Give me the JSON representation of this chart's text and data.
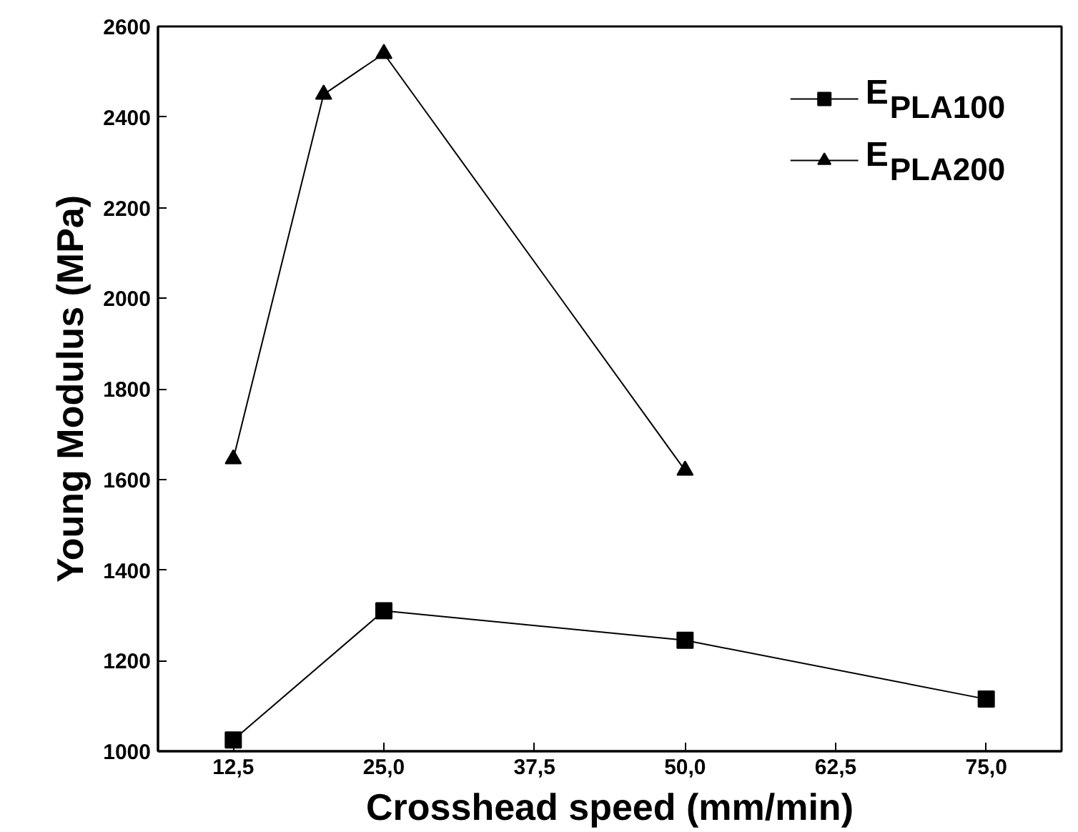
{
  "chart_data": {
    "type": "line",
    "xlabel": "Crosshead speed (mm/min)",
    "ylabel": "Young Modulus (MPa)",
    "xlim": [
      6.25,
      81.25
    ],
    "ylim": [
      1000,
      2600
    ],
    "xticks": [
      {
        "value": 12.5,
        "label": "12,5"
      },
      {
        "value": 25,
        "label": "25,0"
      },
      {
        "value": 37.5,
        "label": "37,5"
      },
      {
        "value": 50,
        "label": "50,0"
      },
      {
        "value": 62.5,
        "label": "62,5"
      },
      {
        "value": 75,
        "label": "75,0"
      }
    ],
    "yticks": [
      1000,
      1200,
      1400,
      1600,
      1800,
      2000,
      2200,
      2400,
      2600
    ],
    "grid": false,
    "legend": "top right",
    "series": [
      {
        "name": "E$_{PLA100}$",
        "color": "#000000",
        "marker": "square",
        "x": [
          12.5,
          25,
          50,
          75
        ],
        "values": [
          1025,
          1310,
          1245,
          1115
        ]
      },
      {
        "name": "E$_{PLA200}$",
        "color": "#000000",
        "marker": "triangle",
        "x": [
          12.5,
          20,
          25,
          50
        ],
        "values": [
          1645,
          2450,
          2540,
          1620
        ]
      }
    ]
  }
}
